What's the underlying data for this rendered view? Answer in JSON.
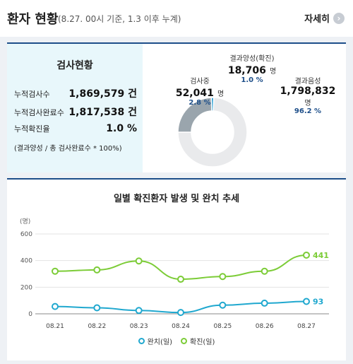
{
  "header": {
    "title": "환자 현황",
    "subtitle": "(8.27. 00시 기준, 1.3 이후 누계)",
    "more_label": "자세히",
    "more_icon": "›"
  },
  "tests": {
    "title": "검사현황",
    "rows": [
      {
        "label": "누적검사수",
        "value": "1,869,579 건"
      },
      {
        "label": "누적검사완료수",
        "value": "1,817,538 건"
      },
      {
        "label": "누적확진율",
        "value": "1.0 %"
      }
    ],
    "note": "(결과양성 / 총 검사완료수 * 100%)"
  },
  "donut": {
    "testing": {
      "label": "검사중",
      "value": "52,041",
      "unit": "명",
      "percent": "2.8 %",
      "share": 2.8,
      "color": "#9aa5ad"
    },
    "positive": {
      "label": "결과양성(확진)",
      "value": "18,706",
      "unit": "명",
      "percent": "1.0 %",
      "share": 1.0,
      "color": "#2b9fd3"
    },
    "negative": {
      "label": "결과음성",
      "value": "1,798,832",
      "unit": "명",
      "percent": "96.2 %",
      "share": 96.2,
      "color": "#e9eaec"
    }
  },
  "chart": {
    "title": "일별 확진환자 발생 및 완치 추세",
    "legend": [
      {
        "label": "완치(일)",
        "color": "#20a8cf"
      },
      {
        "label": "확진(일)",
        "color": "#7ccc37"
      }
    ]
  },
  "chart_data": {
    "type": "line",
    "unit_label": "(명)",
    "categories": [
      "08.21",
      "08.22",
      "08.23",
      "08.24",
      "08.25",
      "08.26",
      "08.27"
    ],
    "ylim": [
      0,
      600
    ],
    "yticks": [
      0,
      200,
      400,
      600
    ],
    "series": [
      {
        "name": "완치(일)",
        "color": "#20a8cf",
        "values": [
          55,
          45,
          25,
          10,
          65,
          80,
          93
        ],
        "end_label": "93"
      },
      {
        "name": "확진(일)",
        "color": "#7ccc37",
        "values": [
          320,
          330,
          397,
          260,
          280,
          320,
          441
        ],
        "end_label": "441"
      }
    ],
    "grid": true
  }
}
